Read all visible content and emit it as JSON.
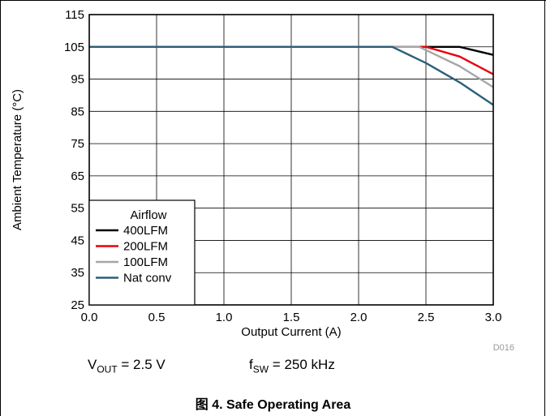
{
  "chart_data": {
    "type": "line",
    "xlabel": "Output Current (A)",
    "ylabel": "Ambient Temperature (°C)",
    "xlim": [
      0,
      3
    ],
    "ylim": [
      25,
      115
    ],
    "x_ticks": [
      "0.0",
      "0.5",
      "1.0",
      "1.5",
      "2.0",
      "2.5",
      "3.0"
    ],
    "y_ticks": [
      "25",
      "35",
      "45",
      "55",
      "65",
      "75",
      "85",
      "95",
      "105",
      "115"
    ],
    "grid": true,
    "legend_title": "Airflow",
    "legend_position": "bottom-left",
    "series": [
      {
        "name": "400LFM",
        "color": "#000000",
        "x": [
          0,
          2.75,
          3.0
        ],
        "y": [
          105,
          105,
          102.5
        ]
      },
      {
        "name": "200LFM",
        "color": "#e8000d",
        "x": [
          0,
          2.5,
          2.75,
          3.0
        ],
        "y": [
          105,
          105,
          102,
          96.5
        ]
      },
      {
        "name": "100LFM",
        "color": "#a6a6a6",
        "x": [
          0,
          2.45,
          2.75,
          3.0
        ],
        "y": [
          105,
          105,
          99,
          92.5
        ]
      },
      {
        "name": "Nat conv",
        "color": "#2c5f79",
        "x": [
          0,
          2.25,
          2.5,
          2.75,
          3.0
        ],
        "y": [
          105,
          105,
          100,
          94,
          87
        ]
      }
    ],
    "figure_code": "D016"
  },
  "conditions": {
    "vout_sym": "V",
    "vout_sub": "OUT",
    "vout_val": " = 2.5 V",
    "fsw_sym": "f",
    "fsw_sub": "SW",
    "fsw_val": " = 250 kHz"
  },
  "caption": "图 4. Safe Operating Area"
}
